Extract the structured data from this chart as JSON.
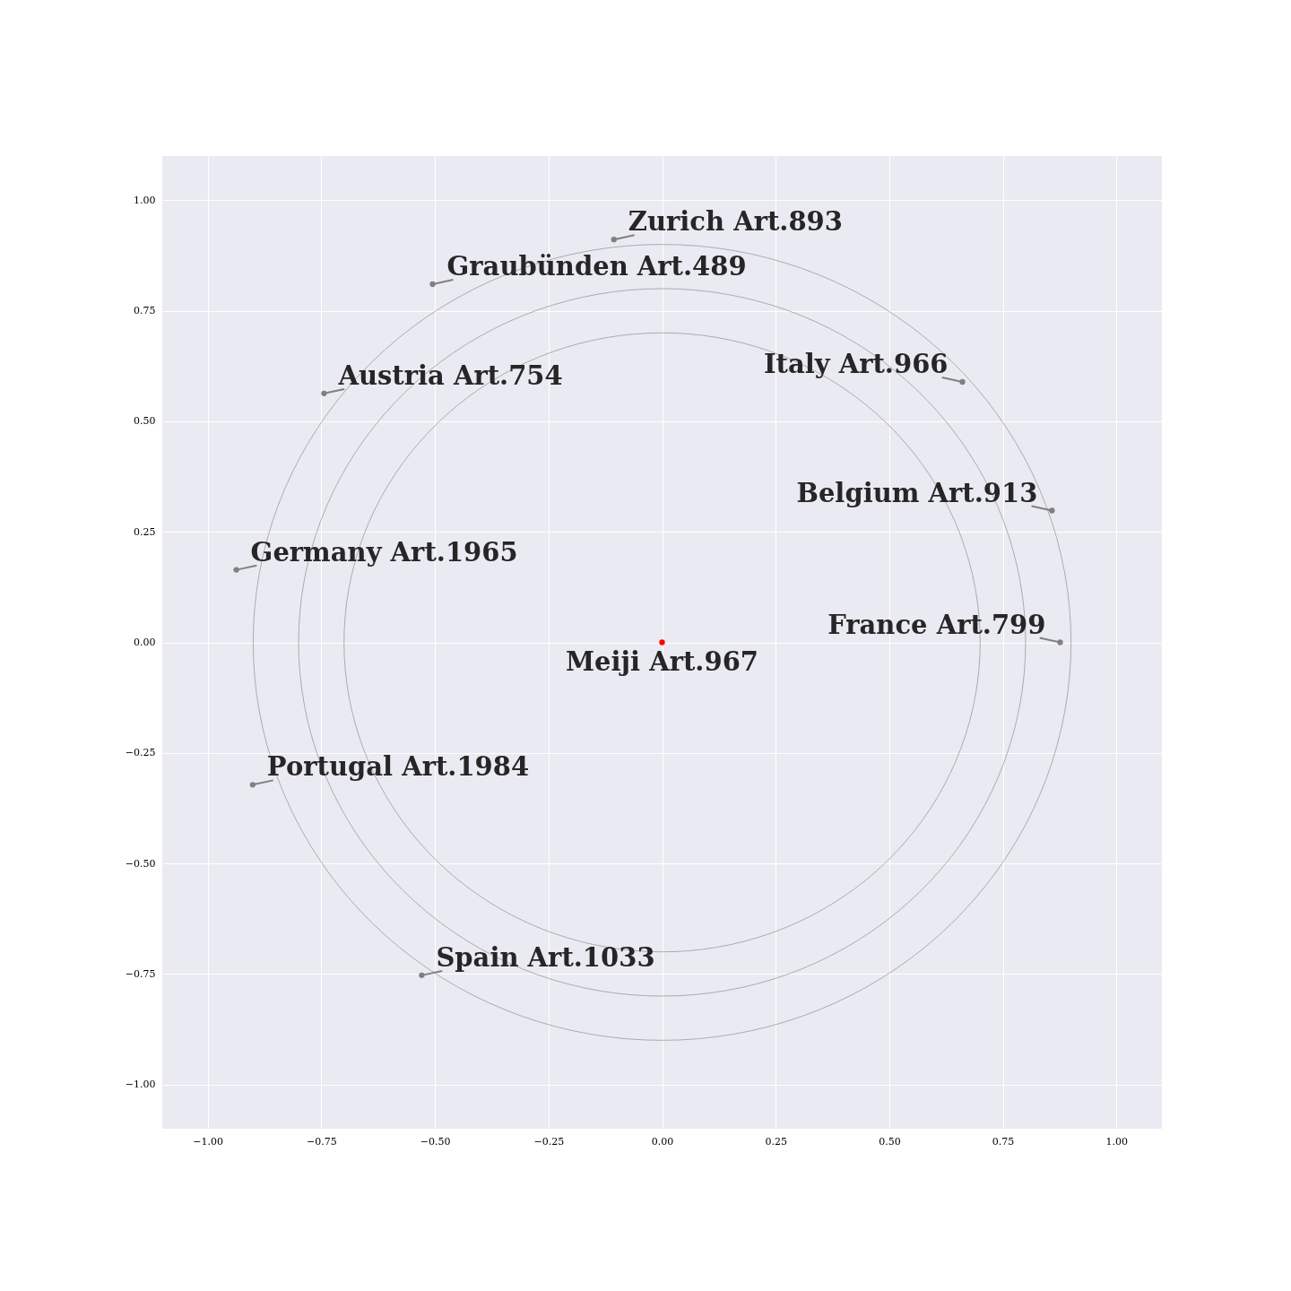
{
  "chart_data": {
    "type": "scatter",
    "xlim": [
      -1.1,
      1.1
    ],
    "ylim": [
      -1.1,
      1.1
    ],
    "xticks": [
      {
        "value": -1,
        "label": "−1.00"
      },
      {
        "value": -0.75,
        "label": "−0.75"
      },
      {
        "value": -0.5,
        "label": "−0.50"
      },
      {
        "value": -0.25,
        "label": "−0.25"
      },
      {
        "value": 0,
        "label": "0.00"
      },
      {
        "value": 0.25,
        "label": "0.25"
      },
      {
        "value": 0.5,
        "label": "0.50"
      },
      {
        "value": 0.75,
        "label": "0.75"
      },
      {
        "value": 1,
        "label": "1.00"
      }
    ],
    "yticks": [
      {
        "value": -1,
        "label": "−1.00"
      },
      {
        "value": -0.75,
        "label": "−0.75"
      },
      {
        "value": -0.5,
        "label": "−0.50"
      },
      {
        "value": -0.25,
        "label": "−0.25"
      },
      {
        "value": 0,
        "label": "0.00"
      },
      {
        "value": 0.25,
        "label": "0.25"
      },
      {
        "value": 0.5,
        "label": "0.50"
      },
      {
        "value": 0.75,
        "label": "0.75"
      },
      {
        "value": 1,
        "label": "1.00"
      }
    ],
    "grid": true,
    "legend": false,
    "marker": "circle",
    "series": [
      {
        "color": "#808080",
        "x": [
          -0.106,
          -0.505,
          -0.744,
          0.661,
          0.858,
          -0.937,
          0.876,
          -0.901,
          -0.529
        ],
        "values": [
          0.911,
          0.81,
          0.563,
          0.589,
          0.298,
          0.164,
          0,
          -0.322,
          -0.753
        ]
      },
      {
        "color": "#ff0000",
        "x": [
          0
        ],
        "values": [
          0
        ]
      }
    ],
    "annotations": [
      {
        "text": "Zurich Art.893",
        "x": -0.106,
        "y": 0.911
      },
      {
        "text": "Graubünden Art.489",
        "x": -0.505,
        "y": 0.81
      },
      {
        "text": "Austria Art.754",
        "x": -0.744,
        "y": 0.563
      },
      {
        "text": "Italy Art.966",
        "x": 0.661,
        "y": 0.589
      },
      {
        "text": "Belgium Art.913",
        "x": 0.858,
        "y": 0.298
      },
      {
        "text": "Germany Art.1965",
        "x": -0.937,
        "y": 0.164
      },
      {
        "text": "France Art.799",
        "x": 0.876,
        "y": 0
      },
      {
        "text": "Portugal Art.1984",
        "x": -0.901,
        "y": -0.322
      },
      {
        "text": "Spain Art.1033",
        "x": -0.529,
        "y": -0.753
      },
      {
        "text": "Meiji Art.967",
        "x": 0,
        "y": 0
      }
    ]
  }
}
